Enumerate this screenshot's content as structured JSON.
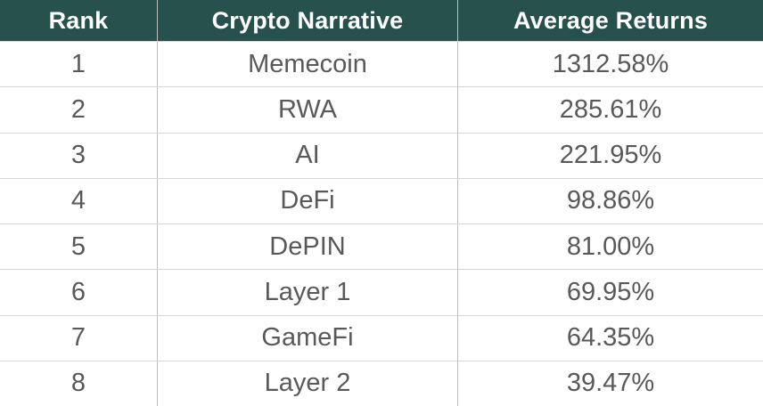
{
  "colors": {
    "header_bg": "#27514d",
    "header_text": "#ffffff",
    "cell_text": "#595959",
    "row_border": "#d6d6d6",
    "col_border": "#bcbfbe",
    "row_bg": "#ffffff"
  },
  "table": {
    "columns": [
      {
        "label": "Rank"
      },
      {
        "label": "Crypto Narrative"
      },
      {
        "label": "Average Returns"
      }
    ],
    "rows": [
      {
        "rank": "1",
        "narrative": "Memecoin",
        "returns": "1312.58%"
      },
      {
        "rank": "2",
        "narrative": "RWA",
        "returns": "285.61%"
      },
      {
        "rank": "3",
        "narrative": "AI",
        "returns": "221.95%"
      },
      {
        "rank": "4",
        "narrative": "DeFi",
        "returns": "98.86%"
      },
      {
        "rank": "5",
        "narrative": "DePIN",
        "returns": "81.00%"
      },
      {
        "rank": "6",
        "narrative": "Layer 1",
        "returns": "69.95%"
      },
      {
        "rank": "7",
        "narrative": "GameFi",
        "returns": "64.35%"
      },
      {
        "rank": "8",
        "narrative": "Layer 2",
        "returns": "39.47%"
      }
    ]
  },
  "chart_data": {
    "type": "table",
    "title": "",
    "categories": [
      "Memecoin",
      "RWA",
      "AI",
      "DeFi",
      "DePIN",
      "Layer 1",
      "GameFi",
      "Layer 2"
    ],
    "series": [
      {
        "name": "Average Returns (%)",
        "values": [
          1312.58,
          285.61,
          221.95,
          98.86,
          81.0,
          69.95,
          64.35,
          39.47
        ]
      }
    ]
  }
}
